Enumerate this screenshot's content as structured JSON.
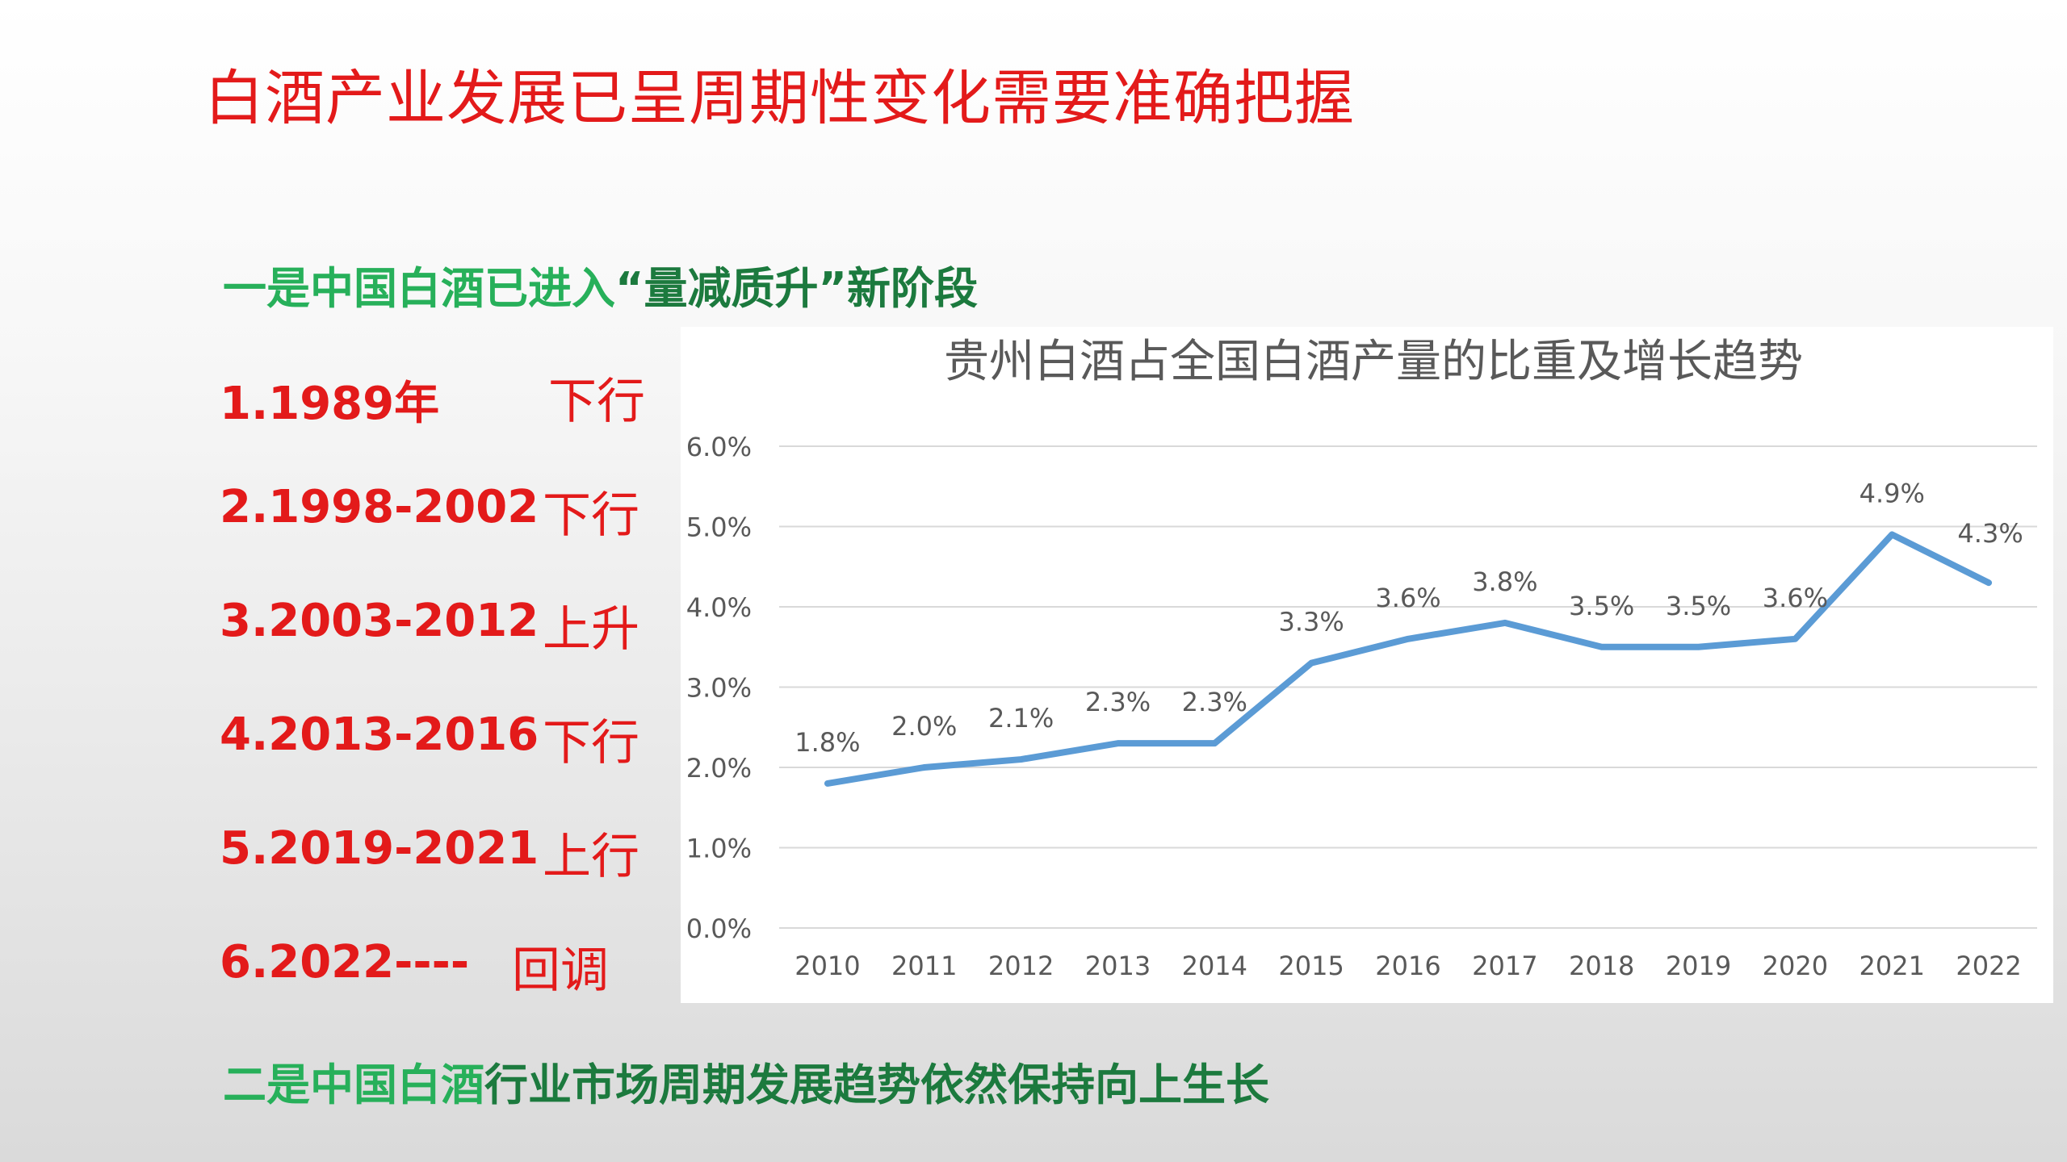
{
  "page": {
    "title": "白酒产业发展已呈周期性变化需要准确把握",
    "heading1_prefix": "一是中国白酒已进入",
    "heading1_quote": "“量减质升”",
    "heading1_suffix": "新阶段",
    "heading2_prefix": "二是中国白酒",
    "heading2_suffix": "行业市场周期发展趋势依然保持向上生长",
    "periods": [
      {
        "range": "1.1989年",
        "trend": "下行"
      },
      {
        "range": "2.1998-2002",
        "trend": "下行"
      },
      {
        "range": "3.2003-2012",
        "trend": "上升"
      },
      {
        "range": "4.2013-2016",
        "trend": "下行"
      },
      {
        "range": "5.2019-2021",
        "trend": "上行"
      },
      {
        "range": "6.2022----",
        "trend": "回调"
      }
    ]
  },
  "chart_data": {
    "type": "line",
    "title": "贵州白酒占全国白酒产量的比重及增长趋势",
    "categories": [
      "2010",
      "2011",
      "2012",
      "2013",
      "2014",
      "2015",
      "2016",
      "2017",
      "2018",
      "2019",
      "2020",
      "2021",
      "2022"
    ],
    "series": [
      {
        "values": [
          1.8,
          2.0,
          2.1,
          2.3,
          2.3,
          3.3,
          3.6,
          3.8,
          3.5,
          3.5,
          3.6,
          4.9,
          4.3
        ]
      }
    ],
    "data_labels": [
      "1.8%",
      "2.0%",
      "2.1%",
      "2.3%",
      "2.3%",
      "3.3%",
      "3.6%",
      "3.8%",
      "3.5%",
      "3.5%",
      "3.6%",
      "4.9%",
      "4.3%"
    ],
    "y_ticks": [
      "0.0%",
      "1.0%",
      "2.0%",
      "3.0%",
      "4.0%",
      "5.0%",
      "6.0%"
    ],
    "ylim": [
      0,
      6
    ],
    "xlabel": "",
    "ylabel": "",
    "grid": true,
    "line_color": "#5b9bd5"
  }
}
